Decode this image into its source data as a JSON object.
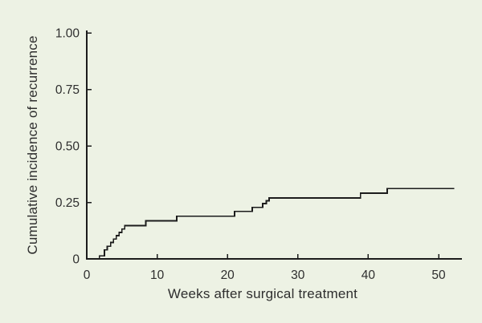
{
  "figure": {
    "background_color": "#edf2e4",
    "axis_color": "#1c1c1c",
    "curve_color": "#1c1c1c",
    "text_color": "#2e2e2e"
  },
  "chart_data": {
    "type": "line",
    "subtype": "step-function cumulative incidence curve",
    "title": "",
    "xlabel": "Weeks after surgical treatment",
    "ylabel": "Cumulative incidence of recurrence",
    "xlim": [
      0,
      53.4
    ],
    "ylim": [
      0,
      1.0
    ],
    "grid": false,
    "legend_position": "none",
    "x_tick_labels": [
      "0",
      "10",
      "20",
      "30",
      "40",
      "50"
    ],
    "x_tick_values": [
      0,
      10,
      20,
      30,
      40,
      50
    ],
    "y_tick_labels": [
      "0",
      "0.25",
      "0.50",
      "0.75",
      "1.00"
    ],
    "y_tick_values": [
      0,
      0.25,
      0.5,
      0.75,
      1.0
    ],
    "series": [
      {
        "name": "Cumulative incidence of recurrence",
        "points": [
          [
            0,
            0
          ],
          [
            1.8,
            0.013
          ],
          [
            2.5,
            0.04
          ],
          [
            2.9,
            0.056
          ],
          [
            3.4,
            0.073
          ],
          [
            3.8,
            0.088
          ],
          [
            4.2,
            0.103
          ],
          [
            4.6,
            0.117
          ],
          [
            5.0,
            0.132
          ],
          [
            5.4,
            0.147
          ],
          [
            8.4,
            0.168
          ],
          [
            12.8,
            0.189
          ],
          [
            21.0,
            0.21
          ],
          [
            23.5,
            0.228
          ],
          [
            25.0,
            0.245
          ],
          [
            25.5,
            0.257
          ],
          [
            25.9,
            0.27
          ],
          [
            38.9,
            0.291
          ],
          [
            42.7,
            0.311
          ],
          [
            52.2,
            0.311
          ]
        ]
      }
    ]
  }
}
